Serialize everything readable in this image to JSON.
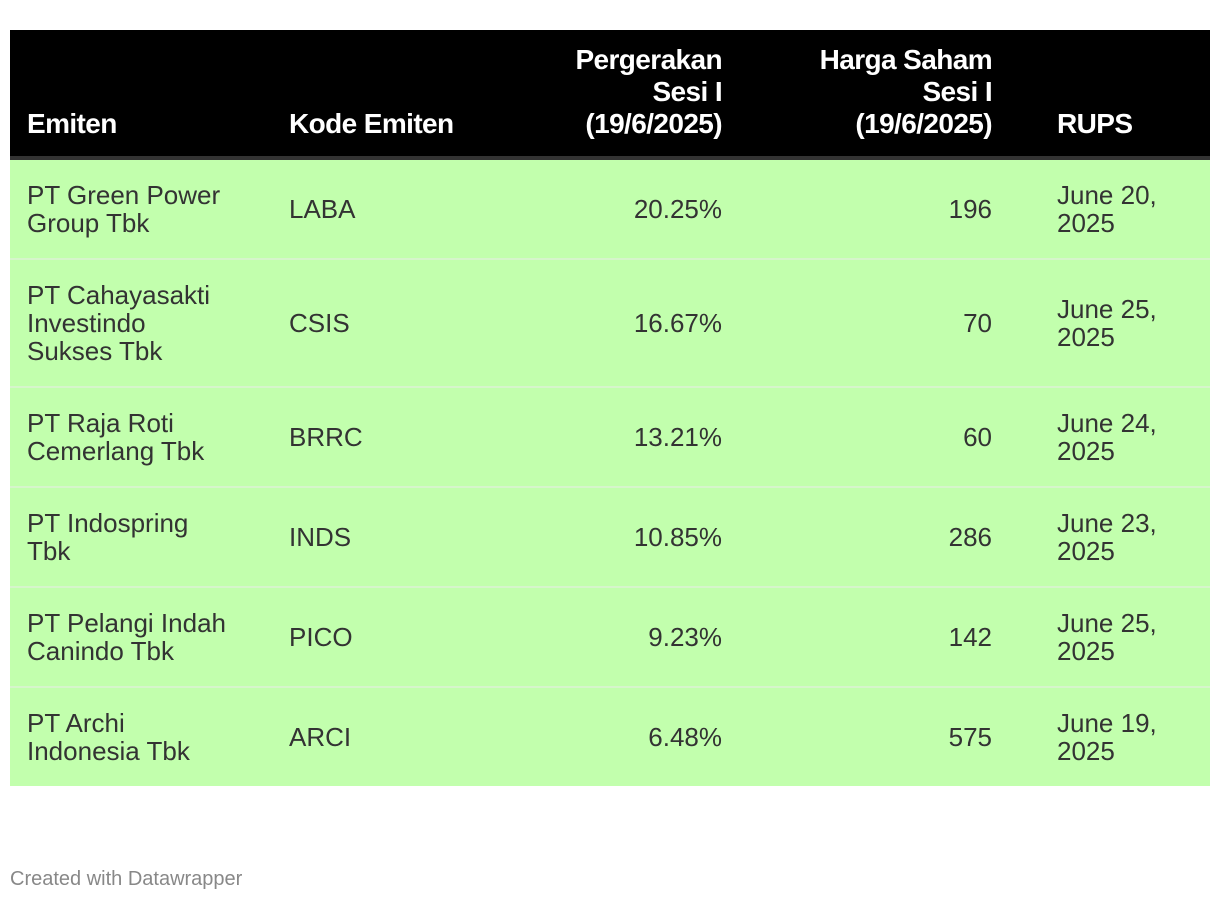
{
  "table": {
    "header": [
      "Emiten",
      "Kode Emiten",
      "Pergerakan Sesi I (19/6/2025)",
      "Harga Saham Sesi I (19/6/2025)",
      "RUPS"
    ],
    "rows": [
      [
        "PT Green Power Group Tbk",
        "LABA",
        "20.25%",
        196,
        "June 20, 2025"
      ],
      [
        "PT Cahayasakti Investindo Sukses Tbk",
        "CSIS",
        "16.67%",
        70,
        "June 25, 2025"
      ],
      [
        "PT Raja Roti Cemerlang Tbk",
        "BRRC",
        "13.21%",
        60,
        "June 24, 2025"
      ],
      [
        "PT Indospring Tbk",
        "INDS",
        "10.85%",
        286,
        "June 23, 2025"
      ],
      [
        "PT Pelangi Indah Canindo Tbk",
        "PICO",
        "9.23%",
        142,
        "June 25, 2025"
      ],
      [
        "PT Archi Indonesia Tbk",
        "ARCI",
        "6.48%",
        575,
        "June 19, 2025"
      ]
    ]
  },
  "footer": "Created with Datawrapper"
}
